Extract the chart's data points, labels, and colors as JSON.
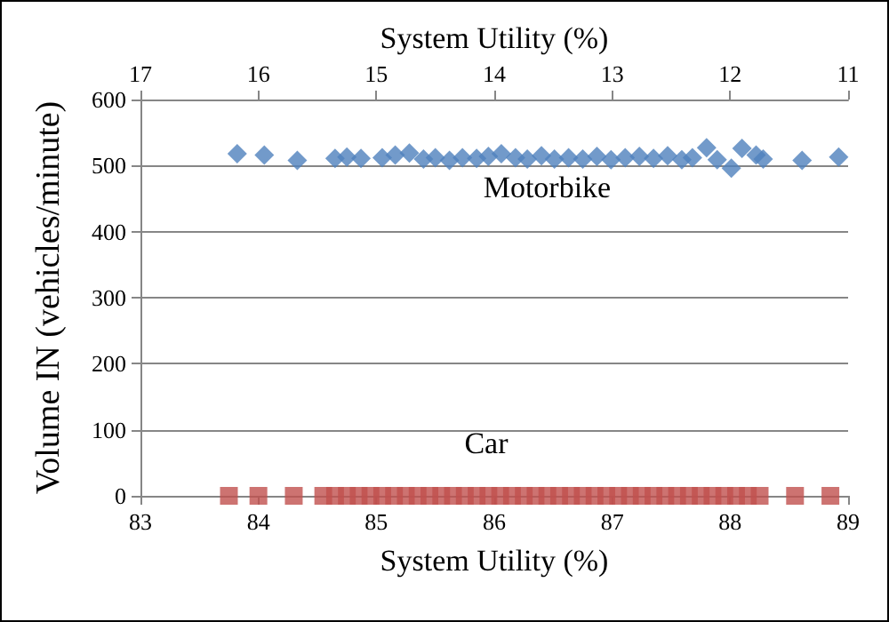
{
  "chart_data": {
    "type": "scatter",
    "xlabel": "System Utility (%)",
    "x2label": "System Utility (%)",
    "ylabel": "Volume IN (vehicles/minute)",
    "xlim": [
      83,
      89
    ],
    "xticks": [
      83,
      84,
      85,
      86,
      87,
      88,
      89
    ],
    "x2lim": [
      17,
      11
    ],
    "x2ticks": [
      17,
      16,
      15,
      14,
      13,
      12,
      11
    ],
    "ylim": [
      0,
      600
    ],
    "yticks": [
      0,
      100,
      200,
      300,
      400,
      500,
      600
    ],
    "grid": "y",
    "legend": false,
    "series": [
      {
        "name": "Motorbike",
        "color": "#4f81bd",
        "marker": "diamond",
        "axis": "x2",
        "x": [
          16.18,
          15.95,
          15.67,
          15.35,
          15.25,
          15.13,
          14.95,
          14.84,
          14.72,
          14.6,
          14.5,
          14.38,
          14.27,
          14.15,
          14.05,
          13.94,
          13.82,
          13.72,
          13.6,
          13.49,
          13.37,
          13.25,
          13.13,
          13.01,
          12.89,
          12.77,
          12.65,
          12.53,
          12.41,
          12.32,
          12.2,
          12.11,
          11.99,
          11.9,
          11.78,
          11.72,
          11.39,
          11.08
        ],
        "values": [
          518,
          516,
          508,
          511,
          513,
          511,
          512,
          516,
          519,
          510,
          512,
          508,
          512,
          511,
          514,
          518,
          512,
          510,
          515,
          510,
          512,
          510,
          514,
          509,
          512,
          514,
          511,
          515,
          509,
          512,
          527,
          509,
          496,
          526,
          516,
          510,
          508,
          513
        ]
      },
      {
        "name": "Car",
        "color": "#c0504d",
        "marker": "square",
        "x": [
          83.75,
          84.0,
          84.3,
          84.55,
          84.65,
          84.75,
          84.85,
          84.95,
          85.05,
          85.15,
          85.25,
          85.35,
          85.45,
          85.55,
          85.65,
          85.75,
          85.85,
          85.95,
          86.05,
          86.15,
          86.25,
          86.35,
          86.45,
          86.55,
          86.65,
          86.75,
          86.85,
          86.95,
          87.05,
          87.15,
          87.25,
          87.35,
          87.45,
          87.55,
          87.65,
          87.75,
          87.85,
          87.95,
          88.05,
          88.15,
          88.25,
          88.55,
          88.85
        ],
        "values": [
          0,
          0,
          0,
          0,
          0,
          0,
          0,
          0,
          0,
          0,
          0,
          0,
          0,
          0,
          0,
          0,
          0,
          0,
          0,
          0,
          0,
          0,
          0,
          0,
          0,
          0,
          0,
          0,
          0,
          0,
          0,
          0,
          0,
          0,
          0,
          0,
          0,
          0,
          0,
          0,
          0,
          0,
          0
        ]
      }
    ]
  }
}
